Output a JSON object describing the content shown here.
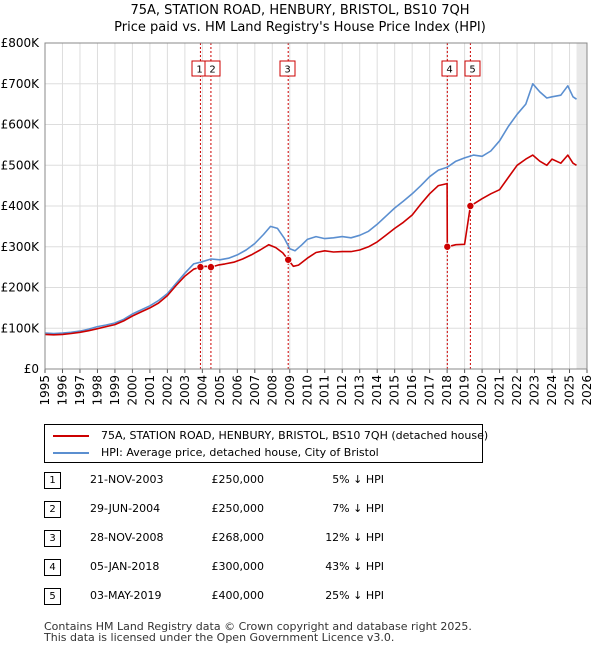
{
  "title": {
    "line1": "75A, STATION ROAD, HENBURY, BRISTOL, BS10 7QH",
    "line2": "Price paid vs. HM Land Registry's House Price Index (HPI)"
  },
  "colors": {
    "property": "#cc0000",
    "hpi": "#5b8fd0",
    "marker_border": "#cc0000",
    "grid": "#dddddd",
    "sale_line": "#cc0000"
  },
  "chart_data": {
    "type": "line",
    "xlim": [
      1995,
      2026
    ],
    "ylim": [
      0,
      800000
    ],
    "y_ticks": [
      {
        "v": 0,
        "label": "£0"
      },
      {
        "v": 100000,
        "label": "£100K"
      },
      {
        "v": 200000,
        "label": "£200K"
      },
      {
        "v": 300000,
        "label": "£300K"
      },
      {
        "v": 400000,
        "label": "£400K"
      },
      {
        "v": 500000,
        "label": "£500K"
      },
      {
        "v": 600000,
        "label": "£600K"
      },
      {
        "v": 700000,
        "label": "£700K"
      },
      {
        "v": 800000,
        "label": "£800K"
      }
    ],
    "x_ticks": [
      "1995",
      "1996",
      "1997",
      "1998",
      "1999",
      "2000",
      "2001",
      "2002",
      "2003",
      "2004",
      "2005",
      "2006",
      "2007",
      "2008",
      "2009",
      "2010",
      "2011",
      "2012",
      "2013",
      "2014",
      "2015",
      "2016",
      "2017",
      "2018",
      "2019",
      "2020",
      "2021",
      "2022",
      "2023",
      "2024",
      "2025",
      "2026"
    ],
    "series": [
      {
        "name": "HPI: Average price, detached house, City of Bristol",
        "points": [
          [
            1995.0,
            88000
          ],
          [
            1995.5,
            87000
          ],
          [
            1996.0,
            88000
          ],
          [
            1996.5,
            90000
          ],
          [
            1997.0,
            93000
          ],
          [
            1997.5,
            98000
          ],
          [
            1998.0,
            104000
          ],
          [
            1998.5,
            108000
          ],
          [
            1999.0,
            113000
          ],
          [
            1999.5,
            122000
          ],
          [
            2000.0,
            135000
          ],
          [
            2000.5,
            145000
          ],
          [
            2001.0,
            155000
          ],
          [
            2001.5,
            168000
          ],
          [
            2002.0,
            185000
          ],
          [
            2002.5,
            210000
          ],
          [
            2003.0,
            235000
          ],
          [
            2003.5,
            258000
          ],
          [
            2003.9,
            262000
          ],
          [
            2004.5,
            270000
          ],
          [
            2005.0,
            268000
          ],
          [
            2005.5,
            272000
          ],
          [
            2006.0,
            280000
          ],
          [
            2006.5,
            292000
          ],
          [
            2007.0,
            308000
          ],
          [
            2007.5,
            330000
          ],
          [
            2007.9,
            350000
          ],
          [
            2008.3,
            345000
          ],
          [
            2008.7,
            320000
          ],
          [
            2009.0,
            295000
          ],
          [
            2009.3,
            290000
          ],
          [
            2009.7,
            305000
          ],
          [
            2010.0,
            318000
          ],
          [
            2010.5,
            325000
          ],
          [
            2011.0,
            320000
          ],
          [
            2011.5,
            322000
          ],
          [
            2012.0,
            325000
          ],
          [
            2012.5,
            322000
          ],
          [
            2013.0,
            328000
          ],
          [
            2013.5,
            338000
          ],
          [
            2014.0,
            355000
          ],
          [
            2014.5,
            375000
          ],
          [
            2015.0,
            395000
          ],
          [
            2015.5,
            412000
          ],
          [
            2016.0,
            430000
          ],
          [
            2016.5,
            450000
          ],
          [
            2017.0,
            472000
          ],
          [
            2017.5,
            488000
          ],
          [
            2018.0,
            495000
          ],
          [
            2018.5,
            510000
          ],
          [
            2019.0,
            518000
          ],
          [
            2019.5,
            525000
          ],
          [
            2020.0,
            522000
          ],
          [
            2020.5,
            535000
          ],
          [
            2021.0,
            560000
          ],
          [
            2021.5,
            595000
          ],
          [
            2022.0,
            625000
          ],
          [
            2022.5,
            650000
          ],
          [
            2022.9,
            700000
          ],
          [
            2023.3,
            680000
          ],
          [
            2023.7,
            665000
          ],
          [
            2024.0,
            668000
          ],
          [
            2024.5,
            672000
          ],
          [
            2024.9,
            695000
          ],
          [
            2025.2,
            668000
          ],
          [
            2025.4,
            662000
          ]
        ]
      },
      {
        "name": "75A, STATION ROAD, HENBURY, BRISTOL, BS10 7QH (detached house)",
        "points": [
          [
            1995.0,
            85000
          ],
          [
            1995.5,
            84000
          ],
          [
            1996.0,
            85000
          ],
          [
            1996.5,
            87000
          ],
          [
            1997.0,
            90000
          ],
          [
            1997.5,
            94000
          ],
          [
            1998.0,
            99000
          ],
          [
            1998.5,
            104000
          ],
          [
            1999.0,
            109000
          ],
          [
            1999.5,
            118000
          ],
          [
            2000.0,
            130000
          ],
          [
            2000.5,
            140000
          ],
          [
            2001.0,
            150000
          ],
          [
            2001.5,
            162000
          ],
          [
            2002.0,
            180000
          ],
          [
            2002.5,
            205000
          ],
          [
            2003.0,
            228000
          ],
          [
            2003.5,
            245000
          ],
          [
            2003.89,
            250000
          ],
          [
            2004.2,
            252000
          ],
          [
            2004.49,
            250000
          ],
          [
            2004.9,
            255000
          ],
          [
            2005.3,
            258000
          ],
          [
            2005.8,
            262000
          ],
          [
            2006.3,
            270000
          ],
          [
            2006.8,
            280000
          ],
          [
            2007.3,
            292000
          ],
          [
            2007.8,
            305000
          ],
          [
            2008.2,
            298000
          ],
          [
            2008.6,
            285000
          ],
          [
            2008.91,
            268000
          ],
          [
            2009.2,
            252000
          ],
          [
            2009.5,
            255000
          ],
          [
            2010.0,
            272000
          ],
          [
            2010.5,
            286000
          ],
          [
            2011.0,
            290000
          ],
          [
            2011.5,
            287000
          ],
          [
            2012.0,
            288000
          ],
          [
            2012.5,
            288000
          ],
          [
            2013.0,
            292000
          ],
          [
            2013.5,
            300000
          ],
          [
            2014.0,
            312000
          ],
          [
            2014.5,
            328000
          ],
          [
            2015.0,
            345000
          ],
          [
            2015.5,
            360000
          ],
          [
            2016.0,
            378000
          ],
          [
            2016.5,
            405000
          ],
          [
            2017.0,
            430000
          ],
          [
            2017.5,
            450000
          ],
          [
            2018.0,
            455000
          ],
          [
            2018.01,
            300000
          ],
          [
            2018.5,
            305000
          ],
          [
            2019.0,
            306000
          ],
          [
            2019.33,
            400000
          ],
          [
            2019.7,
            410000
          ],
          [
            2020.0,
            418000
          ],
          [
            2020.5,
            430000
          ],
          [
            2021.0,
            440000
          ],
          [
            2021.5,
            470000
          ],
          [
            2022.0,
            500000
          ],
          [
            2022.5,
            515000
          ],
          [
            2022.9,
            525000
          ],
          [
            2023.3,
            510000
          ],
          [
            2023.7,
            500000
          ],
          [
            2024.0,
            515000
          ],
          [
            2024.5,
            505000
          ],
          [
            2024.9,
            525000
          ],
          [
            2025.2,
            505000
          ],
          [
            2025.4,
            500000
          ]
        ]
      }
    ],
    "transactions": [
      {
        "label": "1",
        "x": 2003.89,
        "price": 250000
      },
      {
        "label": "2",
        "x": 2004.49,
        "price": 250000
      },
      {
        "label": "3",
        "x": 2008.91,
        "price": 268000
      },
      {
        "label": "4",
        "x": 2018.01,
        "price": 300000
      },
      {
        "label": "5",
        "x": 2019.33,
        "price": 400000
      }
    ],
    "future_shade_from": 2025.4
  },
  "legend": {
    "property_label": "75A, STATION ROAD, HENBURY, BRISTOL, BS10 7QH (detached house)",
    "hpi_label": "HPI: Average price, detached house, City of Bristol"
  },
  "table": [
    {
      "num": "1",
      "date": "21-NOV-2003",
      "price": "£250,000",
      "hpi": "5% ↓ HPI"
    },
    {
      "num": "2",
      "date": "29-JUN-2004",
      "price": "£250,000",
      "hpi": "7% ↓ HPI"
    },
    {
      "num": "3",
      "date": "28-NOV-2008",
      "price": "£268,000",
      "hpi": "12% ↓ HPI"
    },
    {
      "num": "4",
      "date": "05-JAN-2018",
      "price": "£300,000",
      "hpi": "43% ↓ HPI"
    },
    {
      "num": "5",
      "date": "03-MAY-2019",
      "price": "£400,000",
      "hpi": "25% ↓ HPI"
    }
  ],
  "footer": {
    "line1": "Contains HM Land Registry data © Crown copyright and database right 2025.",
    "line2": "This data is licensed under the Open Government Licence v3.0."
  }
}
